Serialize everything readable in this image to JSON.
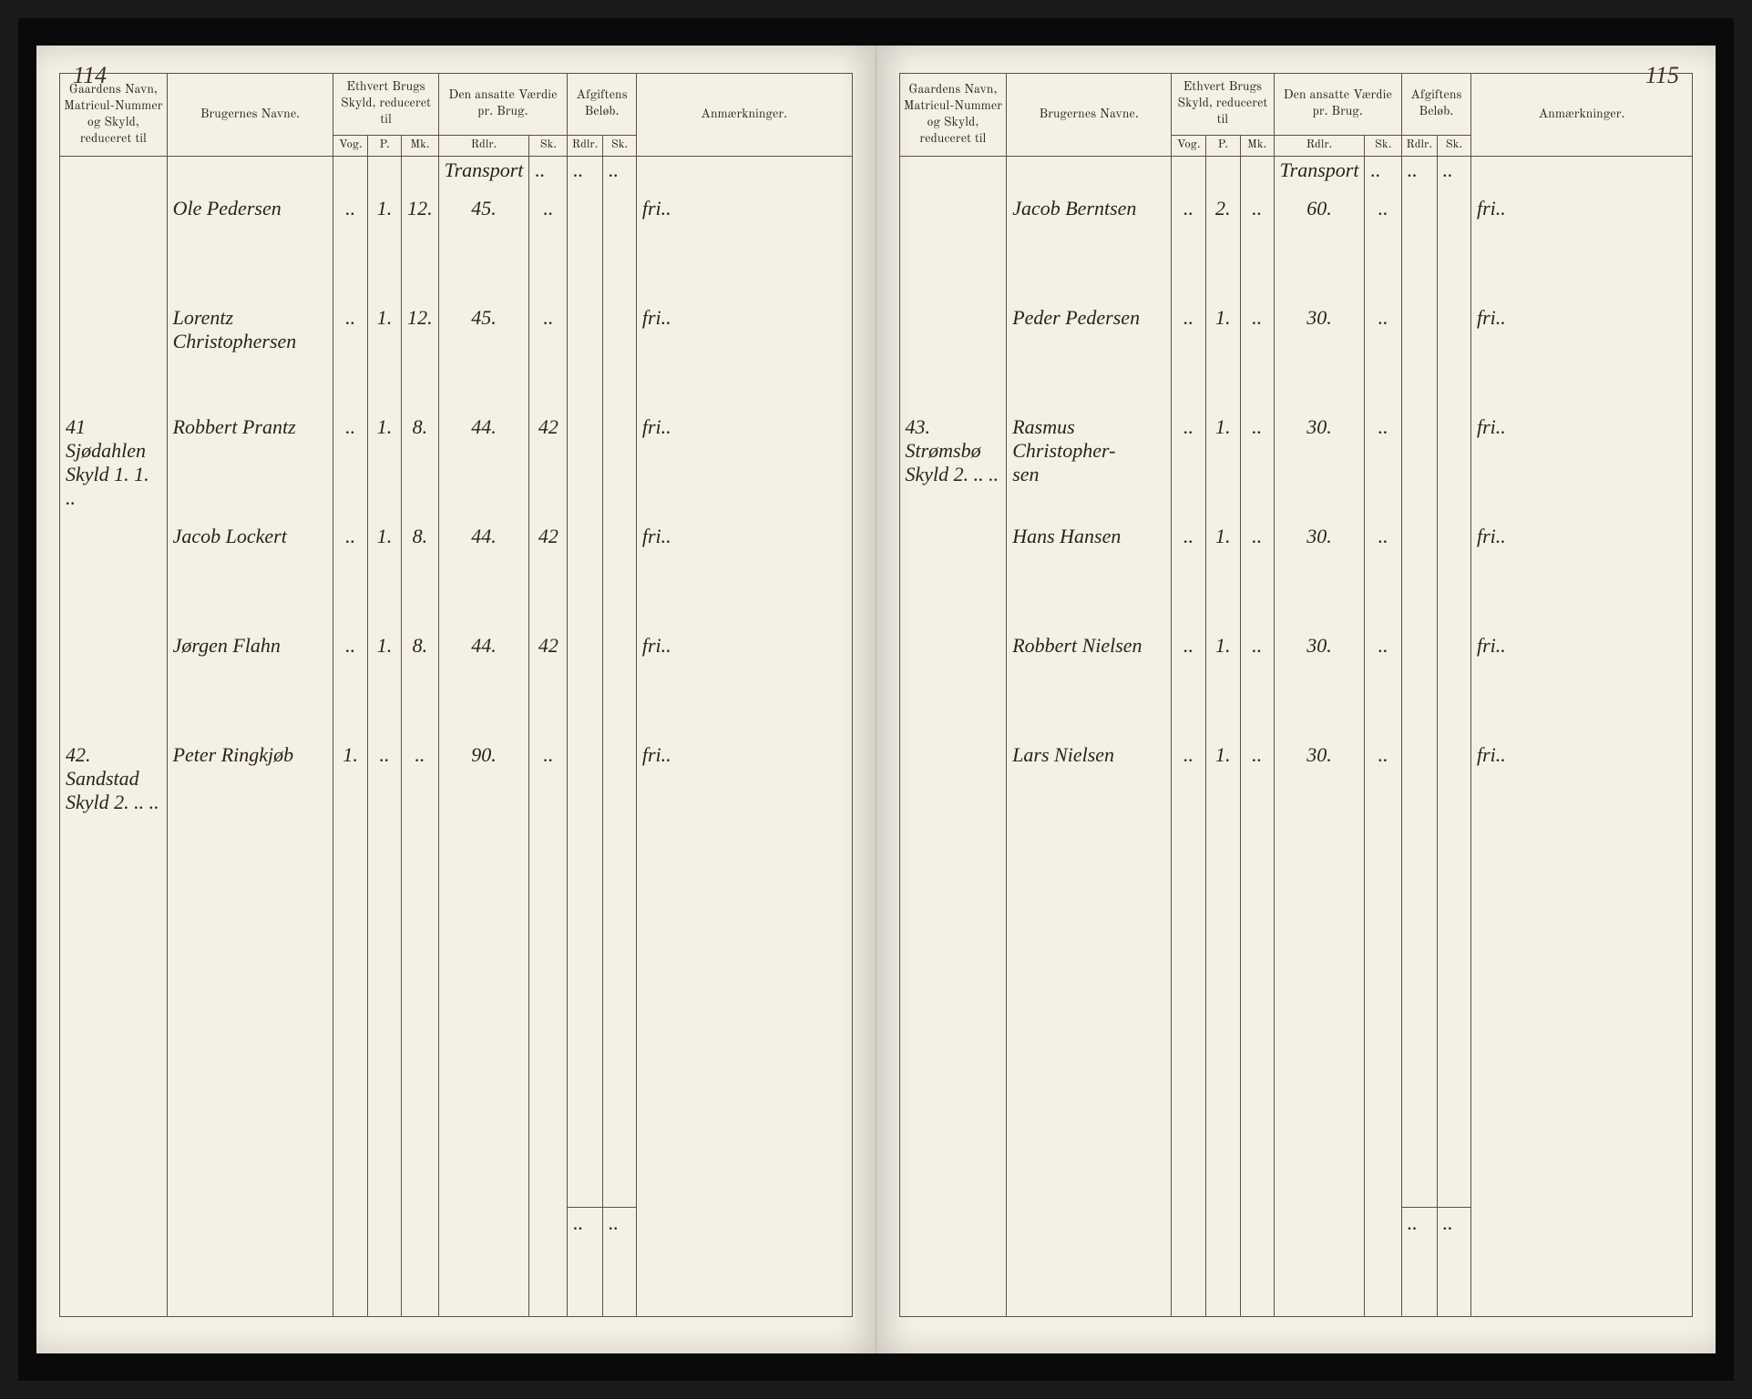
{
  "leftPage": {
    "pageNumber": "114",
    "headers": {
      "gaard": "Gaardens Navn, Matricul-Nummer og Skyld, reduceret til",
      "bruger": "Brugernes Navne.",
      "skyld": "Ethvert Brugs Skyld, reduceret til",
      "vaerdie": "Den ansatte Værdie pr. Brug.",
      "afgift": "Afgiftens Beløb.",
      "anm": "Anmærkninger."
    },
    "subheaders": {
      "s1": "Vog.",
      "s2": "P.",
      "s3": "Mk.",
      "v1": "Rdlr.",
      "v2": "Sk.",
      "a1": "Rdlr.",
      "a2": "Sk."
    },
    "transport": "Transport",
    "rows": [
      {
        "gaard": "",
        "bruger": "Ole Pedersen",
        "s1": "..",
        "s2": "1.",
        "s3": "12.",
        "v1": "45.",
        "v2": "..",
        "anm": "fri.."
      },
      {
        "gaard": "",
        "bruger": "Lorentz Christophersen",
        "s1": "..",
        "s2": "1.",
        "s3": "12.",
        "v1": "45.",
        "v2": "..",
        "anm": "fri.."
      },
      {
        "gaard": "41 Sjødahlen\nSkyld 1. 1. ..",
        "bruger": "Robbert Prantz",
        "s1": "..",
        "s2": "1.",
        "s3": "8.",
        "v1": "44.",
        "v2": "42",
        "anm": "fri.."
      },
      {
        "gaard": "",
        "bruger": "Jacob Lockert",
        "s1": "..",
        "s2": "1.",
        "s3": "8.",
        "v1": "44.",
        "v2": "42",
        "anm": "fri.."
      },
      {
        "gaard": "",
        "bruger": "Jørgen Flahn",
        "s1": "..",
        "s2": "1.",
        "s3": "8.",
        "v1": "44.",
        "v2": "42",
        "anm": "fri.."
      },
      {
        "gaard": "42. Sandstad\nSkyld 2. .. ..",
        "bruger": "Peter Ringkjøb",
        "s1": "1.",
        "s2": "..",
        "s3": "..",
        "v1": "90.",
        "v2": "..",
        "anm": "fri.."
      }
    ],
    "footer": {
      "a1": "..",
      "a2": ".."
    }
  },
  "rightPage": {
    "pageNumber": "115",
    "headers": {
      "gaard": "Gaardens Navn, Matricul-Nummer og Skyld, reduceret til",
      "bruger": "Brugernes Navne.",
      "skyld": "Ethvert Brugs Skyld, reduceret til",
      "vaerdie": "Den ansatte Værdie pr. Brug.",
      "afgift": "Afgiftens Beløb.",
      "anm": "Anmærkninger."
    },
    "subheaders": {
      "s1": "Vog.",
      "s2": "P.",
      "s3": "Mk.",
      "v1": "Rdlr.",
      "v2": "Sk.",
      "a1": "Rdlr.",
      "a2": "Sk."
    },
    "transport": "Transport",
    "rows": [
      {
        "gaard": "",
        "bruger": "Jacob Berntsen",
        "s1": "..",
        "s2": "2.",
        "s3": "..",
        "v1": "60.",
        "v2": "..",
        "anm": "fri.."
      },
      {
        "gaard": "",
        "bruger": "Peder Pedersen",
        "s1": "..",
        "s2": "1.",
        "s3": "..",
        "v1": "30.",
        "v2": "..",
        "anm": "fri.."
      },
      {
        "gaard": "43. Strømsbø\nSkyld 2. .. ..",
        "bruger": "Rasmus Christopher-\nsen",
        "s1": "..",
        "s2": "1.",
        "s3": "..",
        "v1": "30.",
        "v2": "..",
        "anm": "fri.."
      },
      {
        "gaard": "",
        "bruger": "Hans Hansen",
        "s1": "..",
        "s2": "1.",
        "s3": "..",
        "v1": "30.",
        "v2": "..",
        "anm": "fri.."
      },
      {
        "gaard": "",
        "bruger": "Robbert Nielsen",
        "s1": "..",
        "s2": "1.",
        "s3": "..",
        "v1": "30.",
        "v2": "..",
        "anm": "fri.."
      },
      {
        "gaard": "",
        "bruger": "Lars Nielsen",
        "s1": "..",
        "s2": "1.",
        "s3": "..",
        "v1": "30.",
        "v2": "..",
        "anm": "fri.."
      }
    ],
    "footer": {
      "a1": "..",
      "a2": ".."
    }
  },
  "colors": {
    "paper": "#f4f0e6",
    "ink": "#2a2418",
    "rule": "#5a5240",
    "background": "#1a1a1a"
  }
}
